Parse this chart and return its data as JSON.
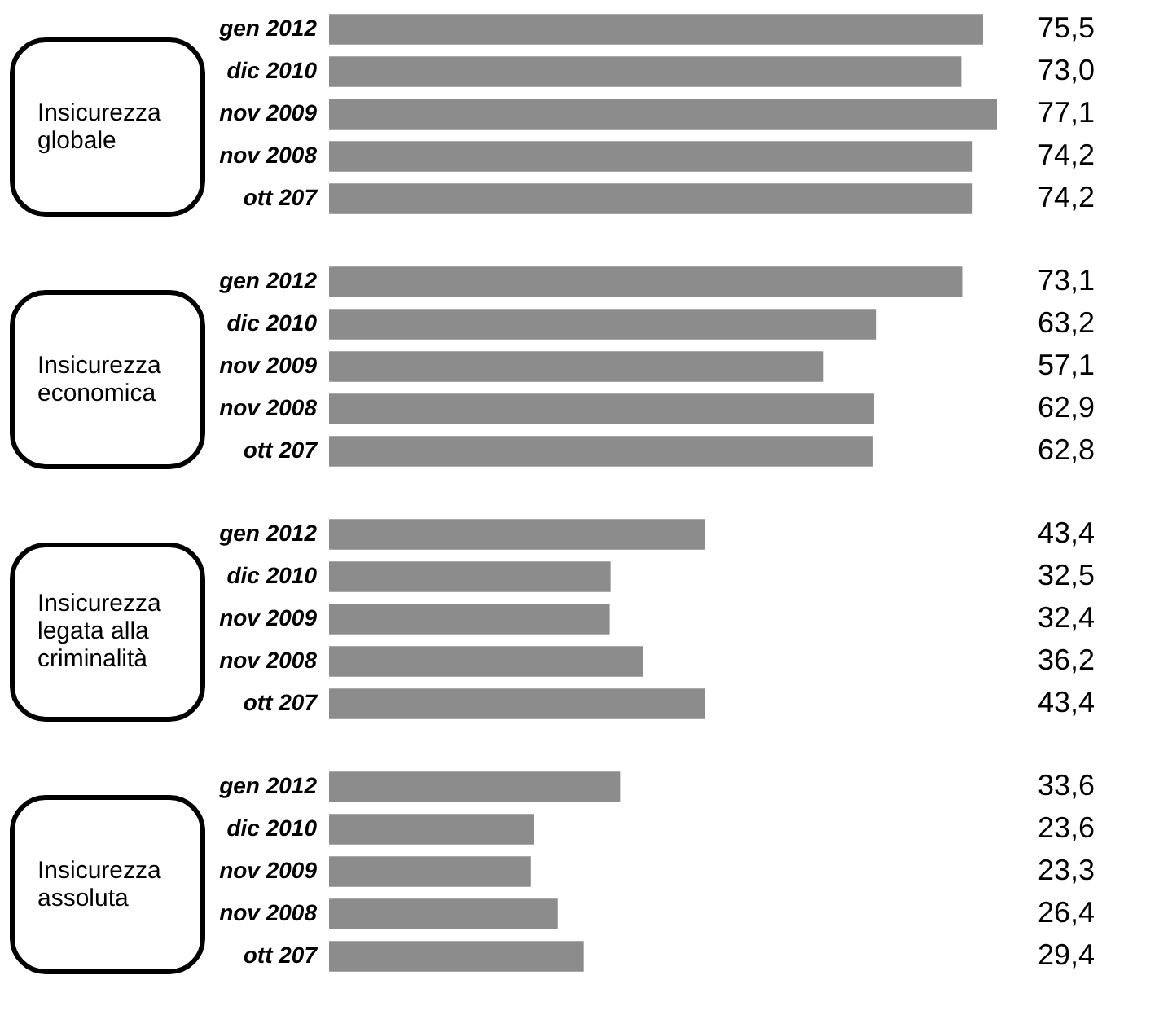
{
  "chart_data": [
    {
      "type": "bar",
      "orientation": "horizontal",
      "title": "Insicurezza globale",
      "categories": [
        "gen 2012",
        "dic 2010",
        "nov 2009",
        "nov 2008",
        "ott 207"
      ],
      "values": [
        75.5,
        73.0,
        77.1,
        74.2,
        74.2
      ],
      "value_labels": [
        "75,5",
        "73,0",
        "77,1",
        "74,2",
        "74,2"
      ],
      "color": "#8c8c8c"
    },
    {
      "type": "bar",
      "orientation": "horizontal",
      "title": "Insicurezza economica",
      "categories": [
        "gen 2012",
        "dic 2010",
        "nov 2009",
        "nov 2008",
        "ott 207"
      ],
      "values": [
        73.1,
        63.2,
        57.1,
        62.9,
        62.8
      ],
      "value_labels": [
        "73,1",
        "63,2",
        "57,1",
        "62,9",
        "62,8"
      ],
      "color": "#8c8c8c"
    },
    {
      "type": "bar",
      "orientation": "horizontal",
      "title": "Insicurezza legata alla criminalità",
      "categories": [
        "gen 2012",
        "dic 2010",
        "nov 2009",
        "nov 2008",
        "ott 207"
      ],
      "values": [
        43.4,
        32.5,
        32.4,
        36.2,
        43.4
      ],
      "value_labels": [
        "43,4",
        "32,5",
        "32,4",
        "36,2",
        "43,4"
      ],
      "color": "#8c8c8c"
    },
    {
      "type": "bar",
      "orientation": "horizontal",
      "title": "Insicurezza assoluta",
      "categories": [
        "gen 2012",
        "dic 2010",
        "nov 2009",
        "nov 2008",
        "ott 207"
      ],
      "values": [
        33.6,
        23.6,
        23.3,
        26.4,
        29.4
      ],
      "value_labels": [
        "33,6",
        "23,6",
        "23,3",
        "26,4",
        "29,4"
      ],
      "color": "#8c8c8c"
    }
  ]
}
